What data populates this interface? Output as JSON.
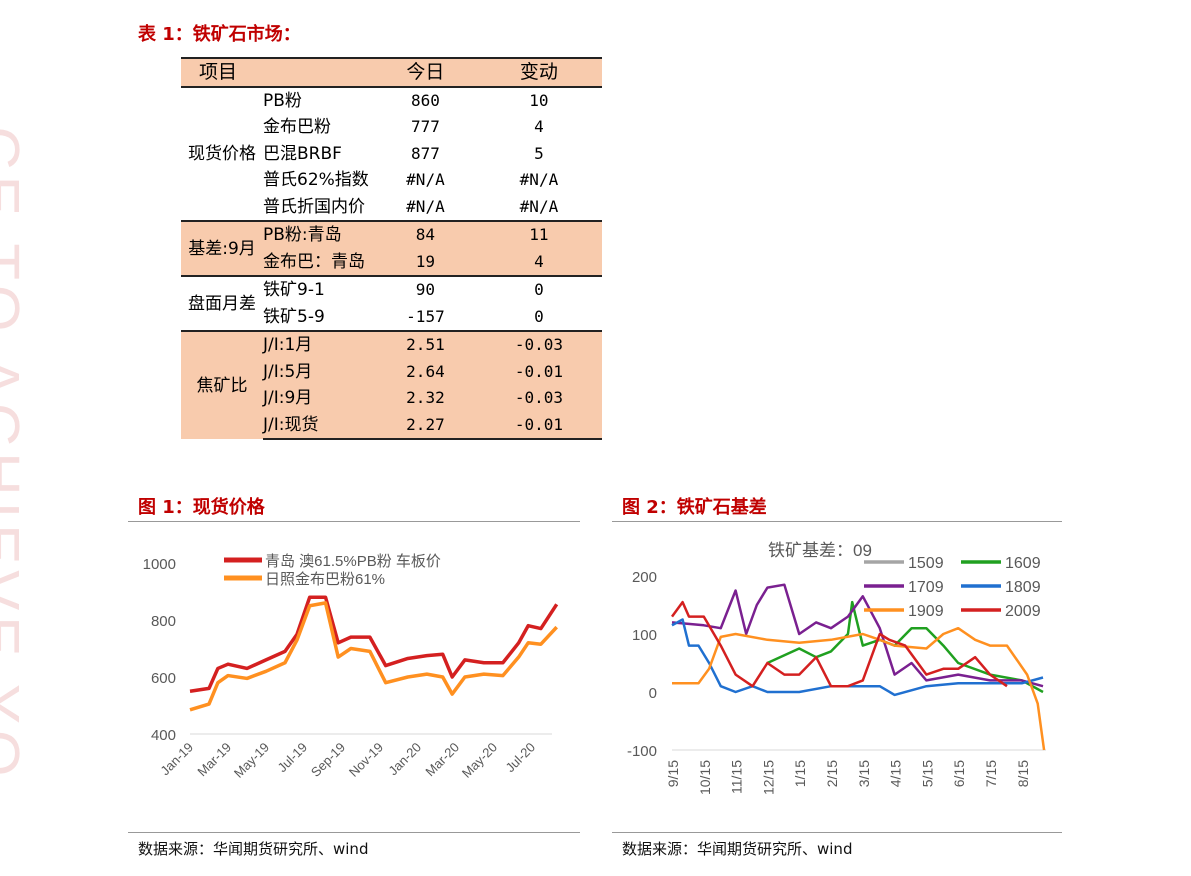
{
  "watermark": "CE TO ACHIEVE YO",
  "table_title": "表 1：铁矿石市场：",
  "table": {
    "headers": [
      "项目",
      "今日",
      "变动"
    ],
    "groups": [
      {
        "label": "现货价格",
        "fill": false,
        "rows": [
          [
            "PB粉",
            "860",
            "10"
          ],
          [
            "金布巴粉",
            "777",
            "4"
          ],
          [
            "巴混BRBF",
            "877",
            "5"
          ],
          [
            "普氏62%指数",
            "#N/A",
            "#N/A"
          ],
          [
            "普氏折国内价",
            "#N/A",
            "#N/A"
          ]
        ]
      },
      {
        "label": "基差:9月",
        "fill": true,
        "rows": [
          [
            "PB粉:青岛",
            "84",
            "11"
          ],
          [
            "金布巴：青岛",
            "19",
            "4"
          ]
        ]
      },
      {
        "label": "盘面月差",
        "fill": false,
        "rows": [
          [
            "铁矿9-1",
            "90",
            "0"
          ],
          [
            "铁矿5-9",
            "-157",
            "0"
          ]
        ]
      },
      {
        "label": "焦矿比",
        "fill": true,
        "rows": [
          [
            "J/I:1月",
            "2.51",
            "-0.03"
          ],
          [
            "J/I:5月",
            "2.64",
            "-0.01"
          ],
          [
            "J/I:9月",
            "2.32",
            "-0.03"
          ],
          [
            "J/I:现货",
            "2.27",
            "-0.01"
          ]
        ]
      }
    ]
  },
  "fig1": {
    "title": "图 1：现货价格",
    "source": "数据来源：华闻期货研究所、wind"
  },
  "fig2": {
    "title": "图 2：铁矿石基差",
    "source": "数据来源：华闻期货研究所、wind"
  },
  "chart_data": [
    {
      "type": "line",
      "title": "",
      "ylim": [
        400,
        1000
      ],
      "yticks": [
        400,
        600,
        800,
        1000
      ],
      "xticks": [
        "Jan-19",
        "Mar-19",
        "May-19",
        "Jul-19",
        "Sep-19",
        "Nov-19",
        "Jan-20",
        "Mar-20",
        "May-20",
        "Jul-20"
      ],
      "legend": "top",
      "series": [
        {
          "name": "青岛 澳61.5%PB粉 车板价",
          "color": "#d42020",
          "x": [
            "2019-01-01",
            "2019-02-01",
            "2019-02-15",
            "2019-03-01",
            "2019-04-01",
            "2019-05-01",
            "2019-06-01",
            "2019-06-20",
            "2019-07-10",
            "2019-08-05",
            "2019-08-25",
            "2019-09-15",
            "2019-10-15",
            "2019-11-10",
            "2019-12-15",
            "2020-01-15",
            "2020-02-10",
            "2020-02-25",
            "2020-03-15",
            "2020-04-15",
            "2020-05-15",
            "2020-06-10",
            "2020-06-25",
            "2020-07-15",
            "2020-08-10"
          ],
          "y": [
            550,
            560,
            630,
            645,
            630,
            660,
            690,
            750,
            880,
            880,
            720,
            740,
            740,
            640,
            665,
            675,
            680,
            600,
            660,
            650,
            650,
            720,
            780,
            770,
            855
          ]
        },
        {
          "name": "日照金布巴粉61%",
          "color": "#ff9020",
          "x": [
            "2019-01-01",
            "2019-02-01",
            "2019-02-15",
            "2019-03-01",
            "2019-04-01",
            "2019-05-01",
            "2019-06-01",
            "2019-06-20",
            "2019-07-10",
            "2019-08-05",
            "2019-08-25",
            "2019-09-15",
            "2019-10-15",
            "2019-11-10",
            "2019-12-15",
            "2020-01-15",
            "2020-02-10",
            "2020-02-25",
            "2020-03-15",
            "2020-04-15",
            "2020-05-15",
            "2020-06-10",
            "2020-06-25",
            "2020-07-15",
            "2020-08-10"
          ],
          "y": [
            485,
            505,
            580,
            605,
            595,
            620,
            650,
            730,
            850,
            860,
            670,
            700,
            690,
            580,
            600,
            610,
            600,
            540,
            600,
            610,
            605,
            670,
            720,
            715,
            775
          ]
        }
      ]
    },
    {
      "type": "line",
      "title": "铁矿基差：09",
      "ylim": [
        -100,
        200
      ],
      "yticks": [
        -100,
        0,
        100,
        200
      ],
      "xticks": [
        "9/15",
        "10/15",
        "11/15",
        "12/15",
        "1/15",
        "2/15",
        "3/15",
        "4/15",
        "5/15",
        "6/15",
        "7/15",
        "8/15"
      ],
      "legend": "top-right",
      "series": [
        {
          "name": "1509",
          "color": "#a5a5a5",
          "x": [],
          "y": []
        },
        {
          "name": "1609",
          "color": "#20a020",
          "x": [
            "12/15",
            "1/15",
            "2/1",
            "2/15",
            "3/1",
            "3/5",
            "3/15",
            "4/1",
            "4/15",
            "5/1",
            "5/15",
            "6/1",
            "6/15",
            "7/15",
            "8/15",
            "9/5"
          ],
          "y": [
            50,
            75,
            60,
            70,
            100,
            155,
            80,
            90,
            80,
            110,
            110,
            80,
            50,
            30,
            20,
            0
          ]
        },
        {
          "name": "1709",
          "color": "#7a2090",
          "x": [
            "9/15",
            "10/15",
            "11/1",
            "11/15",
            "11/25",
            "12/5",
            "12/15",
            "1/1",
            "1/15",
            "2/1",
            "2/15",
            "3/1",
            "3/15",
            "4/1",
            "4/15",
            "5/1",
            "5/15",
            "6/15",
            "7/15",
            "8/15",
            "9/5"
          ],
          "y": [
            120,
            115,
            110,
            175,
            100,
            150,
            180,
            185,
            100,
            120,
            110,
            130,
            165,
            110,
            30,
            50,
            20,
            30,
            20,
            20,
            10
          ]
        },
        {
          "name": "1809",
          "color": "#2070d0",
          "x": [
            "9/15",
            "9/25",
            "10/1",
            "10/10",
            "10/20",
            "11/1",
            "11/15",
            "12/1",
            "12/15",
            "1/15",
            "2/15",
            "3/15",
            "4/1",
            "4/15",
            "5/15",
            "6/15",
            "7/15",
            "8/15",
            "9/5"
          ],
          "y": [
            115,
            125,
            80,
            80,
            50,
            10,
            0,
            10,
            0,
            0,
            10,
            10,
            10,
            -5,
            10,
            15,
            15,
            15,
            25
          ]
        },
        {
          "name": "1909",
          "color": "#ff9020",
          "x": [
            "9/15",
            "10/10",
            "10/20",
            "11/1",
            "11/15",
            "12/15",
            "1/15",
            "2/15",
            "3/15",
            "4/1",
            "4/15",
            "5/15",
            "6/1",
            "6/15",
            "7/1",
            "7/15",
            "8/1",
            "8/20",
            "8/30",
            "9/3",
            "9/6"
          ],
          "y": [
            15,
            15,
            40,
            95,
            100,
            90,
            85,
            90,
            100,
            90,
            80,
            75,
            100,
            110,
            90,
            80,
            80,
            30,
            -20,
            -60,
            -100
          ]
        },
        {
          "name": "2009",
          "color": "#d42020",
          "x": [
            "9/15",
            "9/25",
            "10/1",
            "10/15",
            "11/1",
            "11/15",
            "12/1",
            "12/15",
            "1/1",
            "1/15",
            "2/1",
            "2/15",
            "3/1",
            "3/15",
            "4/1",
            "4/10",
            "4/25",
            "5/15",
            "6/1",
            "6/15",
            "7/1",
            "7/15",
            "8/1"
          ],
          "y": [
            130,
            155,
            130,
            130,
            80,
            30,
            10,
            50,
            30,
            30,
            60,
            10,
            10,
            20,
            100,
            90,
            80,
            30,
            40,
            40,
            60,
            30,
            10
          ]
        }
      ]
    }
  ]
}
